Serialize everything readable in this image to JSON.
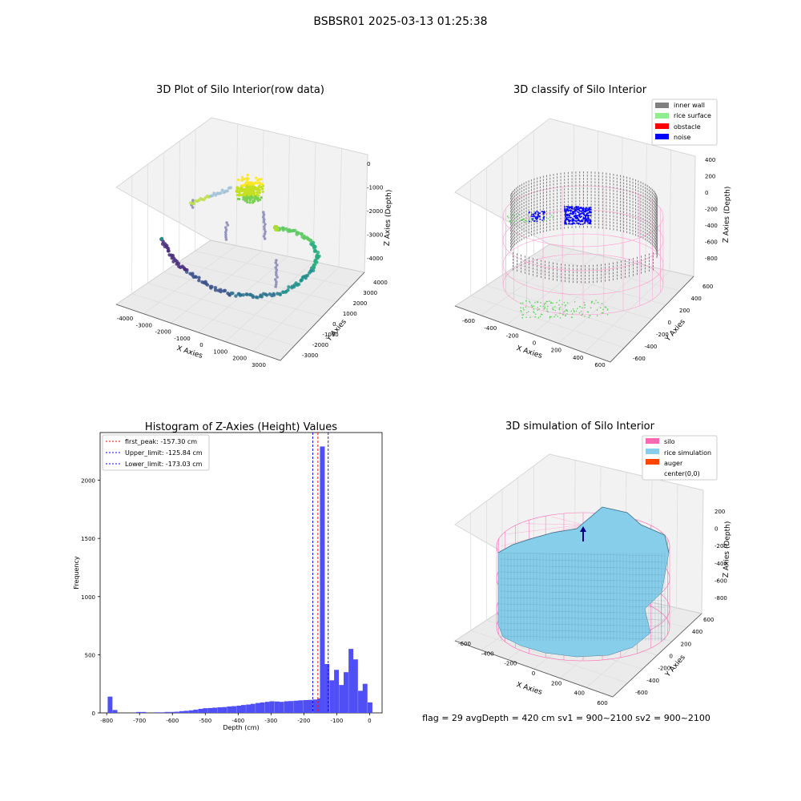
{
  "suptitle": "BSBSR01 2025-03-13 01:25:38",
  "footer": "flag = 29  avgDepth = 420 cm  sv1 = 900~2100  sv2 = 900~2100",
  "colors": {
    "hist_bar": "#4f4ff5",
    "first_peak": "#ff0000",
    "limits": "#0000ff",
    "inner_wall": "#808080",
    "rice_surface": "#90ee90",
    "obstacle": "#ff0000",
    "noise": "#0000ff",
    "silo": "#ff69b4",
    "rice_simulation": "#87ceeb",
    "auger": "#ff4500"
  },
  "chart_data": [
    {
      "type": "scatter",
      "projection": "3d",
      "title": "3D Plot of Silo Interior(row data)",
      "xlabel": "X Axies",
      "ylabel": "Y Axies",
      "zlabel": "Z Axies (Depth)",
      "x_ticks": [
        "-4000",
        "-3000",
        "-2000",
        "-1000",
        "0",
        "1000",
        "2000",
        "3000"
      ],
      "y_ticks": [
        "-3000",
        "-2000",
        "-1000",
        "0",
        "1000",
        "2000",
        "3000",
        "4000"
      ],
      "z_ticks": [
        "0",
        "-1000",
        "-2000",
        "-3000",
        "-4000"
      ],
      "colormap": "viridis"
    },
    {
      "type": "scatter",
      "projection": "3d",
      "title": "3D classify of Silo Interior",
      "xlabel": "X Axies",
      "ylabel": "Y Axies",
      "zlabel": "Z Axies (Depth)",
      "x_ticks": [
        "-600",
        "-400",
        "-200",
        "0",
        "200",
        "400",
        "600"
      ],
      "y_ticks": [
        "-600",
        "-400",
        "-200",
        "0",
        "200",
        "400",
        "600"
      ],
      "z_ticks": [
        "400",
        "200",
        "0",
        "-200",
        "-400",
        "-600",
        "-800"
      ],
      "legend": [
        "inner wall",
        "rice surface",
        "obstacle",
        "noise"
      ],
      "legend_position": "top-right"
    },
    {
      "type": "bar",
      "title": "Histogram of Z-Axies (Height) Values",
      "xlabel": "Depth (cm)",
      "ylabel": "Frequency",
      "xlim": [
        -820,
        38
      ],
      "ylim": [
        0,
        2410
      ],
      "x_ticks": [
        -800,
        -700,
        -600,
        -500,
        -400,
        -300,
        -200,
        -100,
        0
      ],
      "y_ticks": [
        0,
        500,
        1000,
        1500,
        2000
      ],
      "bin_width": 14.5,
      "bins": [
        [
          -797,
          140
        ],
        [
          -782,
          25
        ],
        [
          -768,
          0
        ],
        [
          -753,
          0
        ],
        [
          -739,
          0
        ],
        [
          -724,
          0
        ],
        [
          -710,
          8
        ],
        [
          -695,
          8
        ],
        [
          -681,
          0
        ],
        [
          -666,
          0
        ],
        [
          -652,
          5
        ],
        [
          -637,
          5
        ],
        [
          -623,
          8
        ],
        [
          -608,
          8
        ],
        [
          -594,
          10
        ],
        [
          -579,
          15
        ],
        [
          -565,
          18
        ],
        [
          -550,
          22
        ],
        [
          -536,
          28
        ],
        [
          -521,
          35
        ],
        [
          -507,
          40
        ],
        [
          -492,
          42
        ],
        [
          -478,
          45
        ],
        [
          -463,
          48
        ],
        [
          -449,
          50
        ],
        [
          -434,
          55
        ],
        [
          -420,
          58
        ],
        [
          -405,
          62
        ],
        [
          -391,
          68
        ],
        [
          -376,
          72
        ],
        [
          -362,
          78
        ],
        [
          -347,
          85
        ],
        [
          -333,
          90
        ],
        [
          -318,
          95
        ],
        [
          -304,
          100
        ],
        [
          -289,
          98
        ],
        [
          -275,
          95
        ],
        [
          -260,
          100
        ],
        [
          -246,
          102
        ],
        [
          -231,
          105
        ],
        [
          -217,
          108
        ],
        [
          -202,
          110
        ],
        [
          -188,
          112
        ],
        [
          -173,
          115
        ],
        [
          -159,
          125
        ],
        [
          -151,
          2290
        ],
        [
          -137,
          420
        ],
        [
          -122,
          280
        ],
        [
          -108,
          370
        ],
        [
          -93,
          240
        ],
        [
          -79,
          350
        ],
        [
          -64,
          550
        ],
        [
          -50,
          460
        ],
        [
          -35,
          190
        ],
        [
          -21,
          250
        ],
        [
          -6,
          90
        ]
      ],
      "lines": [
        {
          "label": "first_peak: -157.30 cm",
          "x": -157.3,
          "style": "dashed",
          "color": "#ff0000"
        },
        {
          "label": "Upper_limit: -125.84 cm",
          "x": -125.84,
          "style": "dashed",
          "color": "#0000ff"
        },
        {
          "label": "Lower_limit: -173.03 cm",
          "x": -173.03,
          "style": "dashed",
          "color": "#0000ff"
        }
      ],
      "legend_position": "top-left"
    },
    {
      "type": "area",
      "projection": "3d",
      "title": "3D simulation of Silo Interior",
      "xlabel": "X Axies",
      "ylabel": "Y Axies",
      "zlabel": "Z Axies (Depth)",
      "x_ticks": [
        "-600",
        "-400",
        "-200",
        "0",
        "200",
        "400",
        "600"
      ],
      "y_ticks": [
        "-600",
        "-400",
        "-200",
        "0",
        "200",
        "400",
        "600"
      ],
      "z_ticks": [
        "200",
        "0",
        "-200",
        "-400",
        "-600",
        "-800"
      ],
      "legend": [
        "silo",
        "rice simulation",
        "auger",
        "center(0,0)"
      ],
      "legend_position": "top-right"
    }
  ]
}
